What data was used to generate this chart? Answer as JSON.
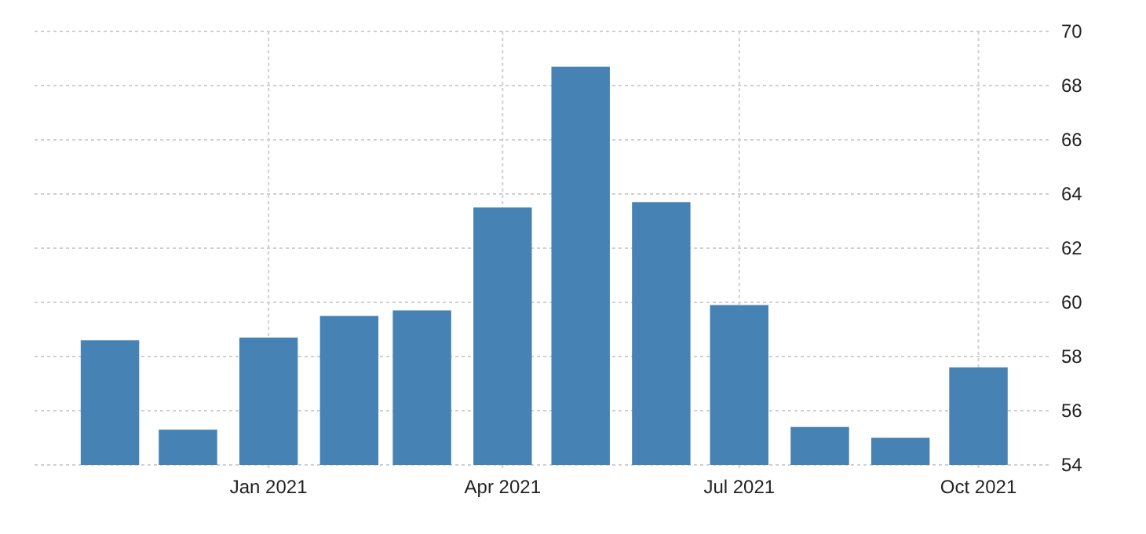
{
  "chart_data": {
    "type": "bar",
    "x": [
      "2020-11",
      "2020-12",
      "2021-01",
      "2021-02",
      "2021-03",
      "2021-04",
      "2021-05",
      "2021-06",
      "2021-07",
      "2021-08",
      "2021-09",
      "2021-10"
    ],
    "values": [
      58.6,
      55.3,
      58.7,
      59.5,
      59.7,
      63.5,
      68.7,
      63.7,
      59.9,
      55.4,
      55.0,
      57.6
    ],
    "color": "#4682b4",
    "xlim": [
      "2020-10-03",
      "2021-10-28"
    ],
    "xticks": [
      {
        "value": "2021-01",
        "label": "Jan 2021"
      },
      {
        "value": "2021-04",
        "label": "Apr 2021"
      },
      {
        "value": "2021-07",
        "label": "Jul 2021"
      },
      {
        "value": "2021-10",
        "label": "Oct 2021"
      }
    ],
    "ylim": [
      54,
      70
    ],
    "yticks": [
      54,
      56,
      58,
      60,
      62,
      64,
      66,
      68,
      70
    ],
    "grid": true
  }
}
